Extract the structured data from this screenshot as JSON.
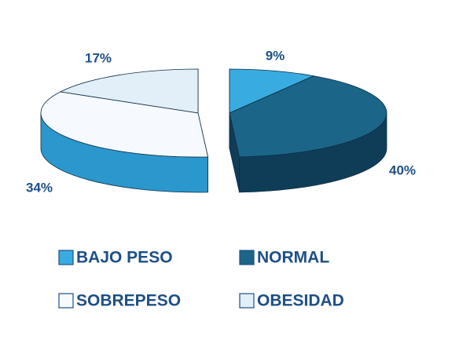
{
  "chart_data": {
    "type": "pie3d",
    "categories": [
      "BAJO PESO",
      "NORMAL",
      "SOBREPESO",
      "OBESIDAD"
    ],
    "values": [
      9,
      40,
      34,
      17
    ],
    "value_labels": [
      "9%",
      "40%",
      "34%",
      "17%"
    ],
    "colors": [
      "#38ace0",
      "#1b6688",
      "#f6f9fd",
      "#e2eff9"
    ],
    "side_colors": [
      "#1e6f96",
      "#0f3d58",
      "#2a98cc",
      "#1d72a0"
    ],
    "legend": "bottom"
  }
}
